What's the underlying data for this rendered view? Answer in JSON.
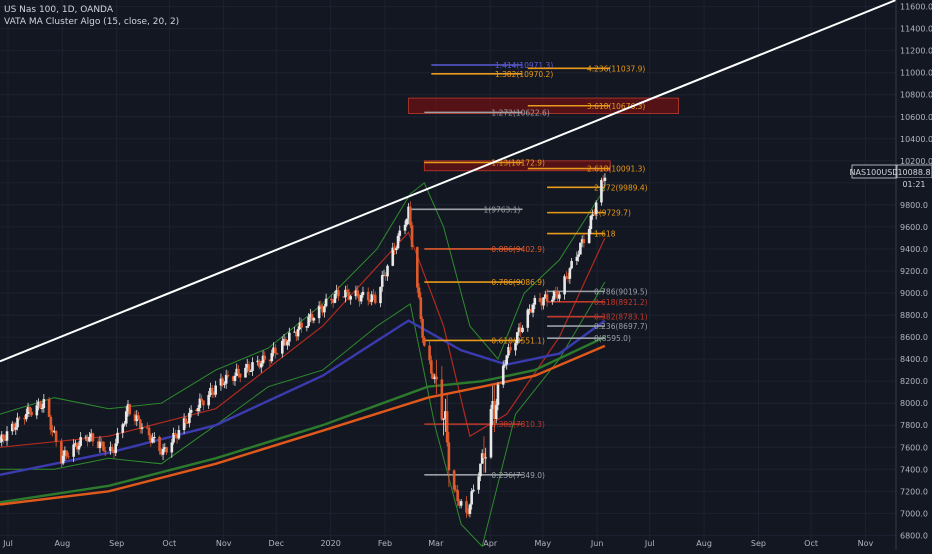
{
  "header": {
    "symbol_line": "US Nas 100, 1D, OANDA",
    "indicator_line": "VATA MA Cluster Algo (15, close, 20, 2)"
  },
  "colors": {
    "background": "#131722",
    "grid": "#1e2230",
    "up_candle": "#e8e8e8",
    "down_candle": "#e05a2b",
    "bb_band": "#2e8b2e",
    "ma_red": "#b22a1f",
    "ma_blue": "#3b3bb0",
    "ma_orange": "#e0591a",
    "ma_green": "#2c7a2c",
    "trendline": "#ffffff",
    "fib_orange": "#e89a1a",
    "fib_red": "#c0392b",
    "fib_gray": "#9aa0a6",
    "fib_blue": "#5a5ad6",
    "zone": "#8b0f0f"
  },
  "price_label": {
    "symbol": "NAS100USD",
    "price": "10088.8",
    "countdown": "01:21"
  },
  "chart_data": {
    "type": "candlestick",
    "x_labels": [
      "Jul",
      "Aug",
      "Sep",
      "Oct",
      "Nov",
      "Dec",
      "2020",
      "Feb",
      "Mar",
      "Apr",
      "May",
      "Jun",
      "Jul",
      "Aug",
      "Sep",
      "Oct",
      "Nov"
    ],
    "y_ticks": [
      "6800.0",
      "7000.0",
      "7200.0",
      "7400.0",
      "7600.0",
      "7800.0",
      "8000.0",
      "8200.0",
      "8400.0",
      "8600.0",
      "8800.0",
      "9000.0",
      "9200.0",
      "9400.0",
      "9600.0",
      "9800.0",
      "10000.0",
      "10200.0",
      "10400.0",
      "10600.0",
      "10800.0",
      "11000.0",
      "11200.0",
      "11400.0",
      "11600.0"
    ],
    "ylim": [
      6740,
      11660
    ],
    "start_date": "2019-07-01",
    "end_date": "2020-11-23",
    "anchors": [
      [
        "2019-07-01",
        7650
      ],
      [
        "2019-07-15",
        7900
      ],
      [
        "2019-07-26",
        8000
      ],
      [
        "2019-08-05",
        7500
      ],
      [
        "2019-08-20",
        7700
      ],
      [
        "2019-09-03",
        7550
      ],
      [
        "2019-09-12",
        7950
      ],
      [
        "2019-10-02",
        7550
      ],
      [
        "2019-10-20",
        7950
      ],
      [
        "2019-11-05",
        8200
      ],
      [
        "2019-11-30",
        8400
      ],
      [
        "2019-12-20",
        8700
      ],
      [
        "2020-01-10",
        9000
      ],
      [
        "2020-01-31",
        8950
      ],
      [
        "2020-02-19",
        9740
      ],
      [
        "2020-02-28",
        8500
      ],
      [
        "2020-03-09",
        8000
      ],
      [
        "2020-03-16",
        7200
      ],
      [
        "2020-03-23",
        6980
      ],
      [
        "2020-04-01",
        7500
      ],
      [
        "2020-04-14",
        8400
      ],
      [
        "2020-04-30",
        8900
      ],
      [
        "2020-05-15",
        9000
      ],
      [
        "2020-06-01",
        9600
      ],
      [
        "2020-06-10",
        10089
      ]
    ],
    "moving_averages": [
      {
        "color": "#b22a1f",
        "points": [
          [
            "2019-07-01",
            7600
          ],
          [
            "2019-09-01",
            7700
          ],
          [
            "2019-11-01",
            7950
          ],
          [
            "2020-01-01",
            8700
          ],
          [
            "2020-02-19",
            9550
          ],
          [
            "2020-03-10",
            8700
          ],
          [
            "2020-03-25",
            7700
          ],
          [
            "2020-04-15",
            7900
          ],
          [
            "2020-05-15",
            8600
          ],
          [
            "2020-06-10",
            9500
          ]
        ]
      },
      {
        "color": "#3b3bb0",
        "points": [
          [
            "2019-07-01",
            7350
          ],
          [
            "2019-09-01",
            7550
          ],
          [
            "2019-11-01",
            7800
          ],
          [
            "2020-01-01",
            8250
          ],
          [
            "2020-02-19",
            8750
          ],
          [
            "2020-03-20",
            8480
          ],
          [
            "2020-04-15",
            8350
          ],
          [
            "2020-05-15",
            8450
          ],
          [
            "2020-06-10",
            8750
          ]
        ]
      },
      {
        "color": "#2c7a2c",
        "points": [
          [
            "2019-07-01",
            7100
          ],
          [
            "2019-09-01",
            7250
          ],
          [
            "2019-11-01",
            7500
          ],
          [
            "2020-01-01",
            7800
          ],
          [
            "2020-03-01",
            8150
          ],
          [
            "2020-04-01",
            8200
          ],
          [
            "2020-05-01",
            8300
          ],
          [
            "2020-06-10",
            8600
          ]
        ]
      },
      {
        "color": "#e0591a",
        "points": [
          [
            "2019-07-01",
            7080
          ],
          [
            "2019-09-01",
            7200
          ],
          [
            "2019-11-01",
            7450
          ],
          [
            "2020-01-01",
            7750
          ],
          [
            "2020-03-01",
            8050
          ],
          [
            "2020-04-01",
            8150
          ],
          [
            "2020-05-01",
            8250
          ],
          [
            "2020-06-10",
            8520
          ]
        ]
      }
    ],
    "bollinger": {
      "color": "#2e8b2e",
      "upper": [
        [
          "2019-07-01",
          7900
        ],
        [
          "2019-08-01",
          8050
        ],
        [
          "2019-09-01",
          7950
        ],
        [
          "2019-10-01",
          8000
        ],
        [
          "2019-11-01",
          8300
        ],
        [
          "2019-12-01",
          8500
        ],
        [
          "2020-01-01",
          8900
        ],
        [
          "2020-02-01",
          9400
        ],
        [
          "2020-02-20",
          9900
        ],
        [
          "2020-02-28",
          10000
        ],
        [
          "2020-03-10",
          9600
        ],
        [
          "2020-03-25",
          8700
        ],
        [
          "2020-04-10",
          8400
        ],
        [
          "2020-04-25",
          9000
        ],
        [
          "2020-05-15",
          9300
        ],
        [
          "2020-06-10",
          9950
        ]
      ],
      "lower": [
        [
          "2019-07-01",
          7400
        ],
        [
          "2019-08-01",
          7400
        ],
        [
          "2019-09-01",
          7500
        ],
        [
          "2019-10-01",
          7450
        ],
        [
          "2019-11-01",
          7800
        ],
        [
          "2019-12-01",
          8150
        ],
        [
          "2020-01-01",
          8300
        ],
        [
          "2020-02-01",
          8700
        ],
        [
          "2020-02-20",
          8900
        ],
        [
          "2020-03-05",
          7800
        ],
        [
          "2020-03-20",
          6900
        ],
        [
          "2020-04-01",
          6700
        ],
        [
          "2020-04-20",
          7900
        ],
        [
          "2020-05-15",
          8400
        ],
        [
          "2020-06-10",
          9100
        ]
      ]
    },
    "trendline": {
      "color": "#ffffff",
      "start": [
        "2019-07-01",
        8380
      ],
      "end": [
        "2020-11-23",
        11660
      ]
    },
    "zones": [
      {
        "x1": "2020-02-28",
        "x2": "2020-06-13",
        "y1": 10110,
        "y2": 10200
      },
      {
        "x1": "2020-02-19",
        "x2": "2020-07-22",
        "y1": 10630,
        "y2": 10770
      }
    ],
    "fib_levels": [
      {
        "label": "1.414(10971.3)",
        "color": "#5a5ad6",
        "x1": "2020-03-03",
        "x2": "2020-04-24",
        "y": 11070
      },
      {
        "label": "1.382(10970.2)",
        "color": "#e89a1a",
        "x1": "2020-03-03",
        "x2": "2020-04-24",
        "y": 10990
      },
      {
        "label": "4.236(11037.9)",
        "color": "#e89a1a",
        "x1": "2020-04-27",
        "x2": "2020-06-13",
        "y": 11040
      },
      {
        "label": "3.618(10676.3)",
        "color": "#e89a1a",
        "x1": "2020-04-27",
        "x2": "2020-06-13",
        "y": 10700
      },
      {
        "label": "1.272(10622.6)",
        "color": "#9aa0a6",
        "x1": "2020-02-28",
        "x2": "2020-04-24",
        "y": 10640
      },
      {
        "label": "1.13(10172.9)",
        "color": "#e89a1a",
        "x1": "2020-02-28",
        "x2": "2020-04-24",
        "y": 10185
      },
      {
        "label": "2.618(10091.3)",
        "color": "#e89a1a",
        "x1": "2020-04-27",
        "x2": "2020-06-13",
        "y": 10130
      },
      {
        "label": "2.272(9989.4)",
        "color": "#e89a1a",
        "x1": "2020-05-08",
        "x2": "2020-06-10",
        "y": 9960
      },
      {
        "label": "2(9729.7)",
        "color": "#e89a1a",
        "x1": "2020-05-08",
        "x2": "2020-06-10",
        "y": 9730
      },
      {
        "label": "1(9763.1)",
        "color": "#9aa0a6",
        "x1": "2020-02-19",
        "x2": "2020-04-24",
        "y": 9760
      },
      {
        "label": "1.618",
        "color": "#e89a1a",
        "x1": "2020-05-08",
        "x2": "2020-06-10",
        "y": 9540
      },
      {
        "label": "0.886(9402.9)",
        "color": "#e05a2b",
        "x1": "2020-02-28",
        "x2": "2020-04-24",
        "y": 9400
      },
      {
        "label": "0.786(9086.9)",
        "color": "#e89a1a",
        "x1": "2020-02-28",
        "x2": "2020-04-24",
        "y": 9100
      },
      {
        "label": "0.618(8551.1)",
        "color": "#e89a1a",
        "x1": "2020-02-28",
        "x2": "2020-04-24",
        "y": 8570
      },
      {
        "label": "0.786(9019.5)",
        "color": "#9aa0a6",
        "x1": "2020-05-08",
        "x2": "2020-06-10",
        "y": 9015
      },
      {
        "label": "0.618(8921.2)",
        "color": "#c0392b",
        "x1": "2020-05-08",
        "x2": "2020-06-10",
        "y": 8920
      },
      {
        "label": "0.382(8783.1)",
        "color": "#c0392b",
        "x1": "2020-05-08",
        "x2": "2020-06-10",
        "y": 8785
      },
      {
        "label": "0.236(8697.7)",
        "color": "#9aa0a6",
        "x1": "2020-05-08",
        "x2": "2020-06-10",
        "y": 8700
      },
      {
        "label": "0(8595.0)",
        "color": "#9aa0a6",
        "x1": "2020-05-08",
        "x2": "2020-06-10",
        "y": 8590
      },
      {
        "label": "0.382(7810.3)",
        "color": "#c0392b",
        "x1": "2020-02-28",
        "x2": "2020-04-24",
        "y": 7810
      },
      {
        "label": "0.236(7349.0)",
        "color": "#9aa0a6",
        "x1": "2020-02-28",
        "x2": "2020-04-24",
        "y": 7350
      }
    ]
  }
}
